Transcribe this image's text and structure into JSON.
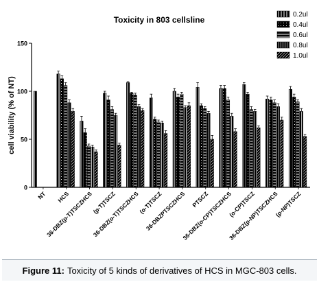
{
  "chart_data": {
    "type": "bar",
    "title": "Toxicity in 803 cellsline",
    "xlabel": "",
    "ylabel": "cell viability (% of NT)",
    "ylim": [
      0,
      150
    ],
    "yticks": [
      0,
      50,
      100,
      150
    ],
    "grid": false,
    "legend_position": "top-right",
    "error_bars": true,
    "categories": [
      "NT",
      "HCS",
      "36-DBZ(p-T)TSCZHCS",
      "(p-T)TSCZ",
      "36-DBZ(o-T)TSCZHCS",
      "(o-T)TSCZ",
      "36-DBZPTSCZHCS",
      "PTSCZ",
      "36-DBZ(o-CP)TSCZHCS",
      "(o-CP)TSCZ",
      "36-DBZ(p-NP)TSCZHCS",
      "(p-NP)TSCZ"
    ],
    "series": [
      {
        "name": "0.2ul",
        "values": [
          100,
          118,
          69,
          98,
          109,
          93,
          100,
          104,
          103,
          107,
          92,
          102
        ]
      },
      {
        "name": "0.4ul",
        "values": null,
        "values_by_category": [
          null,
          113,
          57,
          91,
          98,
          71,
          94,
          85,
          103,
          97,
          91,
          94
        ]
      },
      {
        "name": "0.6ul",
        "values": [
          null,
          106,
          43,
          81,
          96,
          68,
          97,
          82,
          91,
          81,
          88,
          89
        ]
      },
      {
        "name": "0.8ul",
        "values": [
          null,
          88,
          42,
          75,
          84,
          67,
          83,
          77,
          74,
          79,
          84,
          79
        ]
      },
      {
        "name": "1.0ul",
        "values": [
          null,
          79,
          37,
          44,
          80,
          56,
          85,
          50,
          58,
          62,
          70,
          53
        ]
      }
    ],
    "errors": [
      [
        0,
        3,
        5,
        2,
        1,
        4,
        3,
        5,
        3,
        2,
        3,
        3
      ],
      [
        null,
        3,
        4,
        4,
        1,
        2,
        3,
        2,
        3,
        2,
        3,
        3
      ],
      [
        null,
        3,
        2,
        3,
        2,
        2,
        2,
        2,
        3,
        3,
        3,
        2
      ],
      [
        null,
        3,
        2,
        2,
        2,
        2,
        2,
        2,
        3,
        2,
        3,
        3
      ],
      [
        null,
        3,
        2,
        2,
        2,
        3,
        3,
        4,
        3,
        2,
        3,
        2
      ]
    ],
    "legend": [
      "0.2ul",
      "0.4ul",
      "0.6ul",
      "0.8ul",
      "1.0ul"
    ]
  },
  "caption": {
    "label": "Figure 11:",
    "text": "Toxicity of 5 kinds of derivatives of HCS in MGC-803 cells."
  }
}
